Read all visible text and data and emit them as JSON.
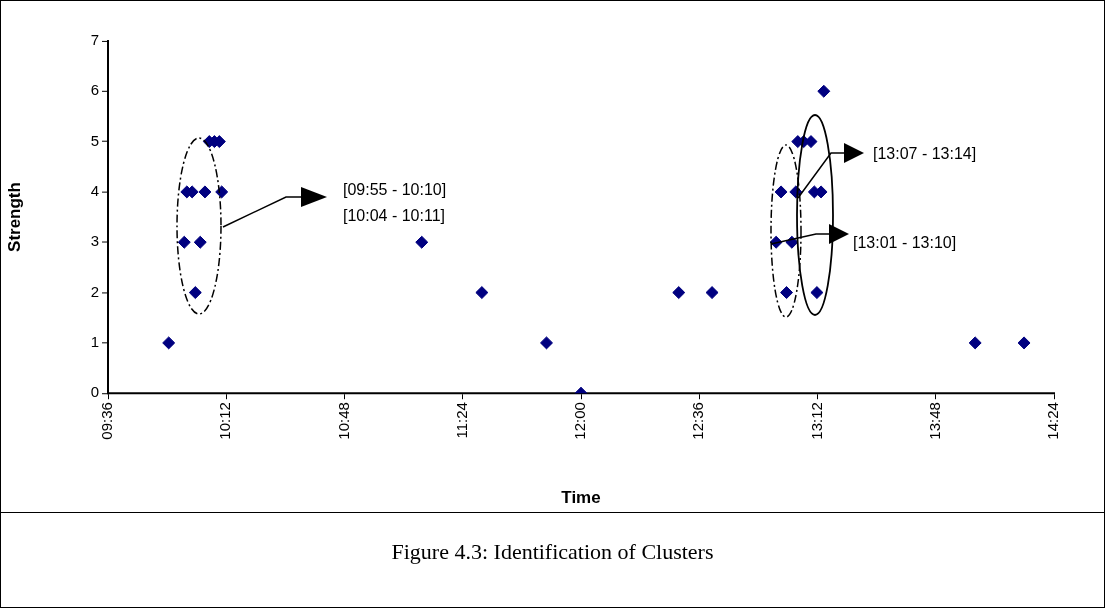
{
  "chart_data": {
    "type": "scatter",
    "xlabel": "Time",
    "ylabel": "Strength",
    "annotations": [
      "[09:55 - 10:10]",
      "[10:04 - 10:11]",
      "[13:07 - 13:14]",
      "[13:01 - 13:10]",
      "Figure 4.3: Identification of Clusters"
    ],
    "x": [
      9.908,
      10.043,
      9.987,
      10.068,
      10.0,
      10.027,
      10.092,
      10.177,
      10.114,
      10.14,
      10.165,
      11.192,
      11.497,
      11.825,
      12.0,
      12.496,
      12.665,
      12.99,
      13.07,
      13.043,
      13.197,
      13.232,
      13.1,
      13.13,
      13.167,
      13.015,
      13.09,
      13.184,
      13.218,
      14.0,
      14.248
    ],
    "series": [
      {
        "color": "#000080",
        "values": [
          1,
          2,
          3,
          3,
          4,
          4,
          4,
          4,
          5,
          5,
          5,
          3,
          2,
          1,
          0,
          2,
          2,
          3,
          3,
          2,
          2,
          6,
          5,
          5,
          5,
          4,
          4,
          4,
          4,
          1,
          1
        ]
      }
    ],
    "xlim": [
      9.6,
      14.4
    ],
    "xticks": [
      {
        "value": 9.6,
        "label": "09:36"
      },
      {
        "value": 10.2,
        "label": "10:12"
      },
      {
        "value": 10.8,
        "label": "10:48"
      },
      {
        "value": 11.4,
        "label": "11:24"
      },
      {
        "value": 12,
        "label": "12:00"
      },
      {
        "value": 12.6,
        "label": "12:36"
      },
      {
        "value": 13.2,
        "label": "13:12"
      },
      {
        "value": 13.8,
        "label": "13:48"
      },
      {
        "value": 14.4,
        "label": "14:24"
      }
    ],
    "ylim": [
      0,
      7
    ],
    "yticks": [
      0,
      1,
      2,
      3,
      4,
      5,
      6,
      7
    ],
    "grid": false,
    "legend": false,
    "marker": "diamond"
  }
}
